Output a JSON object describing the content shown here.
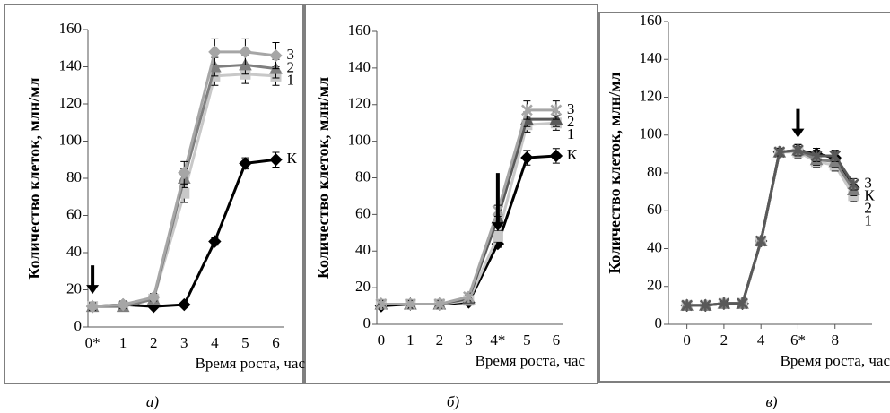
{
  "chart_data": [
    {
      "type": "line",
      "caption": "а)",
      "xlabel": "Время роста, час",
      "ylabel": "Количество клеток, млн/мл",
      "categories": [
        "0*",
        "1",
        "2",
        "3",
        "4",
        "5",
        "6"
      ],
      "arrow_category": 0,
      "ylim": [
        0,
        160
      ],
      "yticks": [
        0,
        20,
        40,
        60,
        80,
        100,
        120,
        140,
        160
      ],
      "series": [
        {
          "name": "К",
          "color": "#000000",
          "marker": "diamond",
          "values": [
            11,
            12,
            11,
            12,
            46,
            88,
            90
          ],
          "errors": [
            1,
            1,
            1,
            1,
            2,
            3,
            4
          ]
        },
        {
          "name": "1",
          "color": "#c8c8c8",
          "marker": "square",
          "values": [
            11,
            11,
            15,
            72,
            135,
            136,
            135
          ],
          "errors": [
            2,
            2,
            2,
            5,
            5,
            5,
            5
          ]
        },
        {
          "name": "2",
          "color": "#7f7f7f",
          "marker": "triangle",
          "values": [
            11,
            11,
            15,
            80,
            140,
            141,
            139
          ],
          "errors": [
            2,
            2,
            2,
            5,
            5,
            5,
            5
          ]
        },
        {
          "name": "3",
          "color": "#a6a6a6",
          "marker": "diamond",
          "values": [
            11,
            12,
            16,
            83,
            148,
            148,
            146
          ],
          "errors": [
            2,
            2,
            2,
            6,
            7,
            7,
            7
          ]
        }
      ]
    },
    {
      "type": "line",
      "caption": "б)",
      "xlabel": "Время роста, час",
      "ylabel": "Количество клеток, млн/мл",
      "categories": [
        "0",
        "1",
        "2",
        "3",
        "4*",
        "5",
        "6"
      ],
      "arrow_category": 4,
      "ylim": [
        0,
        160
      ],
      "yticks": [
        0,
        20,
        40,
        60,
        80,
        100,
        120,
        140,
        160
      ],
      "series": [
        {
          "name": "К",
          "color": "#000000",
          "marker": "diamond",
          "values": [
            10,
            11,
            11,
            12,
            44,
            91,
            92
          ],
          "errors": [
            1,
            1,
            1,
            1,
            2,
            4,
            4
          ]
        },
        {
          "name": "1",
          "color": "#c8c8c8",
          "marker": "square",
          "values": [
            11,
            11,
            11,
            13,
            48,
            109,
            110
          ],
          "errors": [
            2,
            2,
            2,
            2,
            3,
            4,
            4
          ]
        },
        {
          "name": "2",
          "color": "#595959",
          "marker": "triangle",
          "values": [
            11,
            11,
            11,
            14,
            58,
            112,
            112
          ],
          "errors": [
            2,
            2,
            2,
            2,
            3,
            4,
            4
          ]
        },
        {
          "name": "3",
          "color": "#a6a6a6",
          "marker": "cross",
          "values": [
            11,
            11,
            11,
            15,
            62,
            117,
            117
          ],
          "errors": [
            2,
            2,
            2,
            2,
            3,
            5,
            5
          ]
        }
      ]
    },
    {
      "type": "line",
      "caption": "в)",
      "xlabel": "Время роста, час",
      "ylabel": "Количество клеток,  млн/мл",
      "x": [
        0,
        1,
        2,
        3,
        4,
        5,
        6,
        7,
        8,
        9
      ],
      "xlim": [
        -1,
        10
      ],
      "xticks": [
        0,
        2,
        4,
        {
          "value": 6,
          "label": "6*"
        },
        8
      ],
      "arrow_x": 6,
      "ylim": [
        0,
        160
      ],
      "yticks": [
        0,
        20,
        40,
        60,
        80,
        100,
        120,
        140,
        160
      ],
      "series": [
        {
          "name": "К",
          "color": "#000000",
          "marker": "diamond",
          "values": [
            10,
            10,
            11,
            11,
            44,
            91,
            92,
            90,
            88,
            72
          ],
          "errors": [
            1,
            1,
            1,
            1,
            1,
            2,
            3,
            3,
            3,
            3
          ]
        },
        {
          "name": "1",
          "color": "#c8c8c8",
          "marker": "square",
          "values": [
            10,
            10,
            11,
            11,
            44,
            91,
            91,
            86,
            84,
            68
          ],
          "errors": [
            1,
            1,
            1,
            1,
            1,
            2,
            3,
            3,
            3,
            3
          ]
        },
        {
          "name": "2",
          "color": "#7f7f7f",
          "marker": "triangle",
          "values": [
            10,
            10,
            11,
            11,
            44,
            91,
            92,
            87,
            86,
            71
          ],
          "errors": [
            1,
            1,
            1,
            1,
            1,
            2,
            3,
            3,
            3,
            3
          ]
        },
        {
          "name": "3",
          "color": "#595959",
          "marker": "cross",
          "values": [
            10,
            10,
            11,
            11,
            44,
            91,
            92,
            89,
            89,
            74
          ],
          "errors": [
            1,
            1,
            1,
            1,
            1,
            2,
            3,
            3,
            3,
            3
          ]
        }
      ]
    }
  ]
}
